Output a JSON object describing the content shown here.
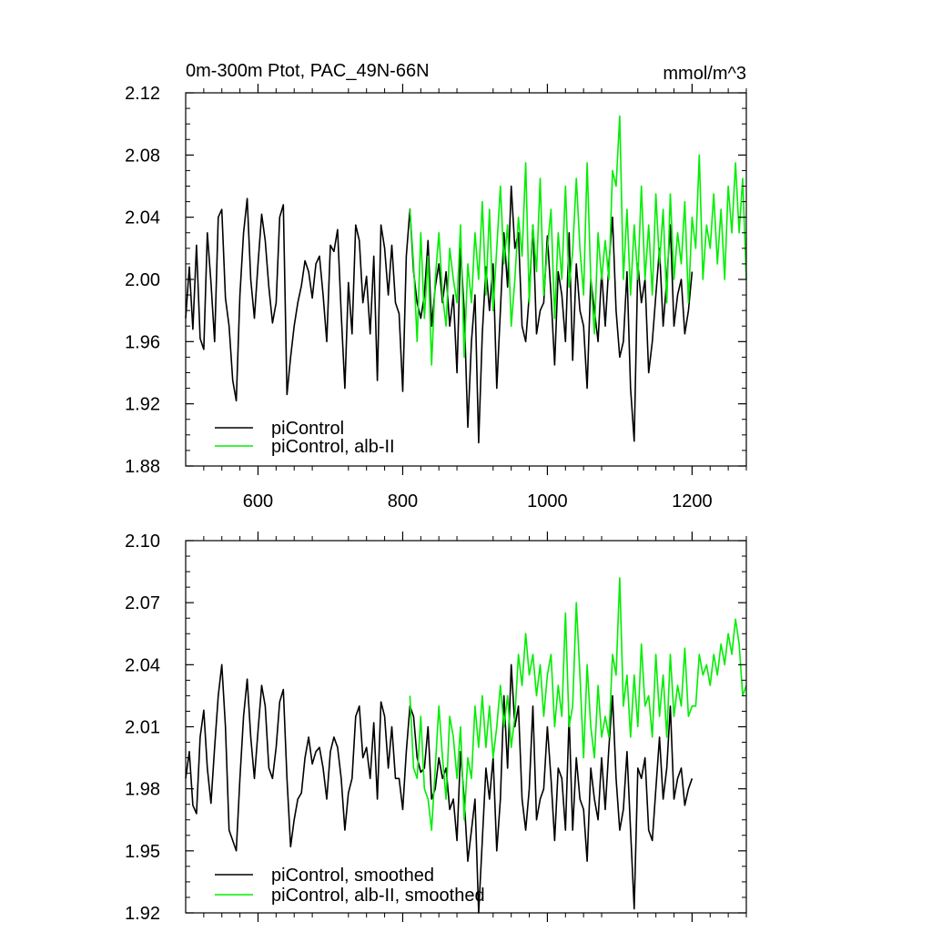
{
  "chart_data": [
    {
      "type": "line",
      "title": "0m-300m Ptot, PAC_49N-66N",
      "units": "mmol/m^3",
      "xlabel": "",
      "ylabel": "",
      "xlim": [
        500,
        1275
      ],
      "ylim": [
        1.88,
        2.12
      ],
      "xticks": [
        600,
        800,
        1000,
        1200
      ],
      "xtick_labels": [
        "600",
        "800",
        "1000",
        "1200"
      ],
      "yticks": [
        1.88,
        1.92,
        1.96,
        2.0,
        2.04,
        2.08,
        2.12
      ],
      "ytick_labels": [
        "1.88",
        "1.92",
        "1.96",
        "2.00",
        "2.04",
        "2.08",
        "2.12"
      ],
      "legend_position": "bottom-left",
      "series": [
        {
          "name": "piControl",
          "color": "#000000",
          "x": [
            500,
            505,
            510,
            515,
            520,
            525,
            530,
            535,
            540,
            545,
            550,
            555,
            560,
            565,
            570,
            575,
            580,
            585,
            590,
            595,
            600,
            605,
            610,
            615,
            620,
            625,
            630,
            635,
            640,
            645,
            650,
            655,
            660,
            665,
            670,
            675,
            680,
            685,
            690,
            695,
            700,
            705,
            710,
            715,
            720,
            725,
            730,
            735,
            740,
            745,
            750,
            755,
            760,
            765,
            770,
            775,
            780,
            785,
            790,
            795,
            800,
            805,
            810,
            815,
            820,
            825,
            830,
            835,
            840,
            845,
            850,
            855,
            860,
            865,
            870,
            875,
            880,
            885,
            890,
            895,
            900,
            905,
            910,
            915,
            920,
            925,
            930,
            935,
            940,
            945,
            950,
            955,
            960,
            965,
            970,
            975,
            980,
            985,
            990,
            995,
            1000,
            1005,
            1010,
            1015,
            1020,
            1025,
            1030,
            1035,
            1040,
            1045,
            1050,
            1055,
            1060,
            1065,
            1070,
            1075,
            1080,
            1085,
            1090,
            1095,
            1100,
            1105,
            1110,
            1115,
            1120,
            1125,
            1130,
            1135,
            1140,
            1145,
            1150,
            1155,
            1160,
            1165,
            1170,
            1175,
            1180,
            1185,
            1190,
            1195,
            1200
          ],
          "values": [
            1.975,
            2.008,
            1.968,
            2.022,
            1.962,
            1.955,
            2.03,
            1.998,
            1.96,
            2.04,
            2.045,
            1.988,
            1.97,
            1.935,
            1.922,
            1.99,
            2.03,
            2.052,
            2.0,
            1.975,
            2.01,
            2.042,
            2.025,
            1.995,
            1.972,
            1.985,
            2.04,
            2.048,
            1.926,
            1.95,
            1.97,
            1.985,
            1.996,
            2.012,
            2.005,
            1.988,
            2.01,
            2.015,
            1.99,
            1.96,
            2.022,
            2.018,
            2.032,
            1.978,
            1.93,
            1.998,
            1.965,
            2.035,
            2.025,
            1.985,
            2.002,
            1.965,
            2.015,
            1.935,
            2.035,
            2.02,
            1.99,
            2.022,
            1.985,
            1.978,
            1.928,
            2.015,
            2.045,
            2.005,
            1.985,
            1.975,
            1.99,
            2.025,
            1.97,
            1.995,
            2.01,
            1.985,
            2.005,
            1.97,
            1.99,
            1.94,
            2.02,
            1.98,
            1.905,
            1.96,
            1.99,
            1.895,
            1.965,
            2.008,
            1.98,
            2.01,
            1.93,
            1.98,
            2.03,
            1.995,
            2.06,
            2.02,
            2.03,
            1.97,
            1.96,
            1.99,
            2.035,
            1.965,
            1.98,
            1.985,
            2.028,
            1.99,
            1.945,
            2.005,
            1.99,
            1.96,
            2.03,
            1.948,
            2.01,
            1.98,
            1.97,
            1.93,
            2.0,
            1.98,
            1.96,
            2.005,
            1.97,
            2.01,
            2.04,
            1.98,
            1.95,
            1.96,
            2.005,
            1.93,
            1.896,
            2.01,
            1.985,
            2.0,
            1.94,
            1.96,
            1.99,
            2.02,
            1.97,
            2.0,
            2.035,
            1.97,
            1.99,
            2.0,
            1.965,
            1.98,
            2.005
          ]
        },
        {
          "name": "piControl, alb-II",
          "color": "#00ee00",
          "x": [
            810,
            815,
            820,
            825,
            830,
            835,
            840,
            845,
            850,
            855,
            860,
            865,
            870,
            875,
            880,
            885,
            890,
            895,
            900,
            905,
            910,
            915,
            920,
            925,
            930,
            935,
            940,
            945,
            950,
            955,
            960,
            965,
            970,
            975,
            980,
            985,
            990,
            995,
            1000,
            1005,
            1010,
            1015,
            1020,
            1025,
            1030,
            1035,
            1040,
            1045,
            1050,
            1055,
            1060,
            1065,
            1070,
            1075,
            1080,
            1085,
            1090,
            1095,
            1100,
            1105,
            1110,
            1115,
            1120,
            1125,
            1130,
            1135,
            1140,
            1145,
            1150,
            1155,
            1160,
            1165,
            1170,
            1175,
            1180,
            1185,
            1190,
            1195,
            1200,
            1205,
            1210,
            1215,
            1220,
            1225,
            1230,
            1235,
            1240,
            1245,
            1250,
            1255,
            1260,
            1265,
            1270,
            1275
          ],
          "values": [
            2.045,
            2.01,
            1.96,
            2.03,
            1.975,
            2.015,
            1.945,
            2.0,
            2.03,
            1.99,
            1.97,
            2.02,
            2.0,
            1.985,
            2.035,
            1.95,
            2.01,
            1.985,
            2.03,
            2.0,
            2.05,
            1.99,
            2.045,
            1.98,
            2.02,
            2.06,
            2.01,
            2.035,
            1.97,
            2.0,
            2.04,
            2.015,
            2.075,
            1.985,
            2.035,
            2.005,
            2.065,
            1.99,
            2.02,
            2.045,
            1.975,
            2.03,
            2.0,
            2.06,
            1.995,
            2.018,
            2.065,
            2.02,
            1.99,
            2.075,
            2.0,
            1.965,
            2.03,
            2.0,
            2.025,
            2.0,
            2.07,
            2.06,
            2.105,
            2.0,
            2.045,
            1.99,
            2.035,
            2.0,
            2.06,
            2.0,
            2.035,
            1.99,
            2.055,
            2.01,
            2.045,
            1.985,
            2.055,
            2.0,
            2.03,
            2.01,
            2.05,
            1.985,
            2.04,
            2.02,
            2.08,
            2.0,
            2.035,
            2.02,
            2.055,
            2.01,
            2.045,
            2.0,
            2.06,
            2.03,
            2.075,
            2.03,
            2.065,
            2.0
          ]
        }
      ]
    },
    {
      "type": "line",
      "title": "",
      "units": "",
      "xlabel": "",
      "ylabel": "",
      "xlim": [
        500,
        1275
      ],
      "ylim": [
        1.92,
        2.1
      ],
      "xticks": [
        600,
        800,
        1000,
        1200
      ],
      "xtick_labels": [],
      "yticks": [
        1.92,
        1.95,
        1.98,
        2.01,
        2.04,
        2.07,
        2.1
      ],
      "ytick_labels": [
        "1.92",
        "1.95",
        "1.98",
        "2.01",
        "2.04",
        "2.07",
        "2.10"
      ],
      "legend_position": "bottom-left",
      "series": [
        {
          "name": "piControl, smoothed",
          "color": "#000000",
          "x": [
            500,
            505,
            510,
            515,
            520,
            525,
            530,
            535,
            540,
            545,
            550,
            555,
            560,
            565,
            570,
            575,
            580,
            585,
            590,
            595,
            600,
            605,
            610,
            615,
            620,
            625,
            630,
            635,
            640,
            645,
            650,
            655,
            660,
            665,
            670,
            675,
            680,
            685,
            690,
            695,
            700,
            705,
            710,
            715,
            720,
            725,
            730,
            735,
            740,
            745,
            750,
            755,
            760,
            765,
            770,
            775,
            780,
            785,
            790,
            795,
            800,
            805,
            810,
            815,
            820,
            825,
            830,
            835,
            840,
            845,
            850,
            855,
            860,
            865,
            870,
            875,
            880,
            885,
            890,
            895,
            900,
            905,
            910,
            915,
            920,
            925,
            930,
            935,
            940,
            945,
            950,
            955,
            960,
            965,
            970,
            975,
            980,
            985,
            990,
            995,
            1000,
            1005,
            1010,
            1015,
            1020,
            1025,
            1030,
            1035,
            1040,
            1045,
            1050,
            1055,
            1060,
            1065,
            1070,
            1075,
            1080,
            1085,
            1090,
            1095,
            1100,
            1105,
            1110,
            1115,
            1120,
            1125,
            1130,
            1135,
            1140,
            1145,
            1150,
            1155,
            1160,
            1165,
            1170,
            1175,
            1180,
            1185,
            1190,
            1195,
            1200
          ],
          "values": [
            1.985,
            1.998,
            1.972,
            1.968,
            2.005,
            2.018,
            1.99,
            1.973,
            2.0,
            2.025,
            2.04,
            2.01,
            1.96,
            1.955,
            1.95,
            1.985,
            2.015,
            2.033,
            2.005,
            1.985,
            2.008,
            2.03,
            2.02,
            1.99,
            1.985,
            2.0,
            2.022,
            2.028,
            1.985,
            1.952,
            1.965,
            1.975,
            1.978,
            1.995,
            2.005,
            1.992,
            1.998,
            2.0,
            1.99,
            1.975,
            1.998,
            2.005,
            2.0,
            1.985,
            1.96,
            1.978,
            1.985,
            2.015,
            2.02,
            1.995,
            2.0,
            1.985,
            2.012,
            1.975,
            2.022,
            2.015,
            1.99,
            2.01,
            1.985,
            1.985,
            1.97,
            1.998,
            2.02,
            2.015,
            1.995,
            1.988,
            1.99,
            2.01,
            1.975,
            1.98,
            1.995,
            1.985,
            1.99,
            1.97,
            1.975,
            1.955,
            1.998,
            1.975,
            1.945,
            1.96,
            1.975,
            1.92,
            1.955,
            1.99,
            1.975,
            1.995,
            1.95,
            1.975,
            2.025,
            1.99,
            2.04,
            2.01,
            2.02,
            1.975,
            1.96,
            1.98,
            2.02,
            1.965,
            1.975,
            1.98,
            2.01,
            1.985,
            1.955,
            1.99,
            1.985,
            1.96,
            2.015,
            1.96,
            1.995,
            1.975,
            1.97,
            1.945,
            1.99,
            1.975,
            1.965,
            1.995,
            1.97,
            2.0,
            2.025,
            1.985,
            1.96,
            1.97,
            1.998,
            1.96,
            1.922,
            1.99,
            1.985,
            1.995,
            1.96,
            1.955,
            1.98,
            2.005,
            1.975,
            1.99,
            2.02,
            1.975,
            1.985,
            1.99,
            1.972,
            1.98,
            1.985
          ]
        },
        {
          "name": "piControl, alb-II, smoothed",
          "color": "#00ee00",
          "x": [
            810,
            815,
            820,
            825,
            830,
            835,
            840,
            845,
            850,
            855,
            860,
            865,
            870,
            875,
            880,
            885,
            890,
            895,
            900,
            905,
            910,
            915,
            920,
            925,
            930,
            935,
            940,
            945,
            950,
            955,
            960,
            965,
            970,
            975,
            980,
            985,
            990,
            995,
            1000,
            1005,
            1010,
            1015,
            1020,
            1025,
            1030,
            1035,
            1040,
            1045,
            1050,
            1055,
            1060,
            1065,
            1070,
            1075,
            1080,
            1085,
            1090,
            1095,
            1100,
            1105,
            1110,
            1115,
            1120,
            1125,
            1130,
            1135,
            1140,
            1145,
            1150,
            1155,
            1160,
            1165,
            1170,
            1175,
            1180,
            1185,
            1190,
            1195,
            1200,
            1205,
            1210,
            1215,
            1220,
            1225,
            1230,
            1235,
            1240,
            1245,
            1250,
            1255,
            1260,
            1265,
            1270,
            1275
          ],
          "values": [
            2.025,
            1.99,
            1.985,
            2.015,
            1.98,
            1.975,
            1.96,
            1.99,
            2.02,
            1.995,
            1.975,
            2.015,
            2.005,
            1.985,
            2.01,
            1.965,
            1.995,
            1.985,
            2.02,
            2.0,
            2.025,
            2.0,
            2.02,
            1.995,
            2.01,
            2.03,
            2.01,
            2.025,
            2.0,
            2.015,
            2.045,
            2.03,
            2.055,
            2.035,
            2.045,
            2.025,
            2.04,
            2.015,
            2.035,
            2.045,
            2.01,
            2.03,
            2.015,
            2.065,
            2.01,
            2.02,
            2.07,
            2.035,
            1.995,
            2.04,
            2.01,
            1.995,
            2.03,
            2.005,
            2.015,
            2.005,
            2.045,
            2.035,
            2.082,
            2.02,
            2.035,
            2.005,
            2.035,
            2.01,
            2.05,
            2.02,
            2.025,
            2.005,
            2.045,
            2.015,
            2.035,
            2.005,
            2.045,
            2.015,
            2.03,
            2.02,
            2.048,
            2.015,
            2.02,
            2.02,
            2.045,
            2.035,
            2.04,
            2.03,
            2.045,
            2.035,
            2.05,
            2.04,
            2.055,
            2.045,
            2.062,
            2.05,
            2.025,
            2.03
          ]
        }
      ]
    }
  ]
}
